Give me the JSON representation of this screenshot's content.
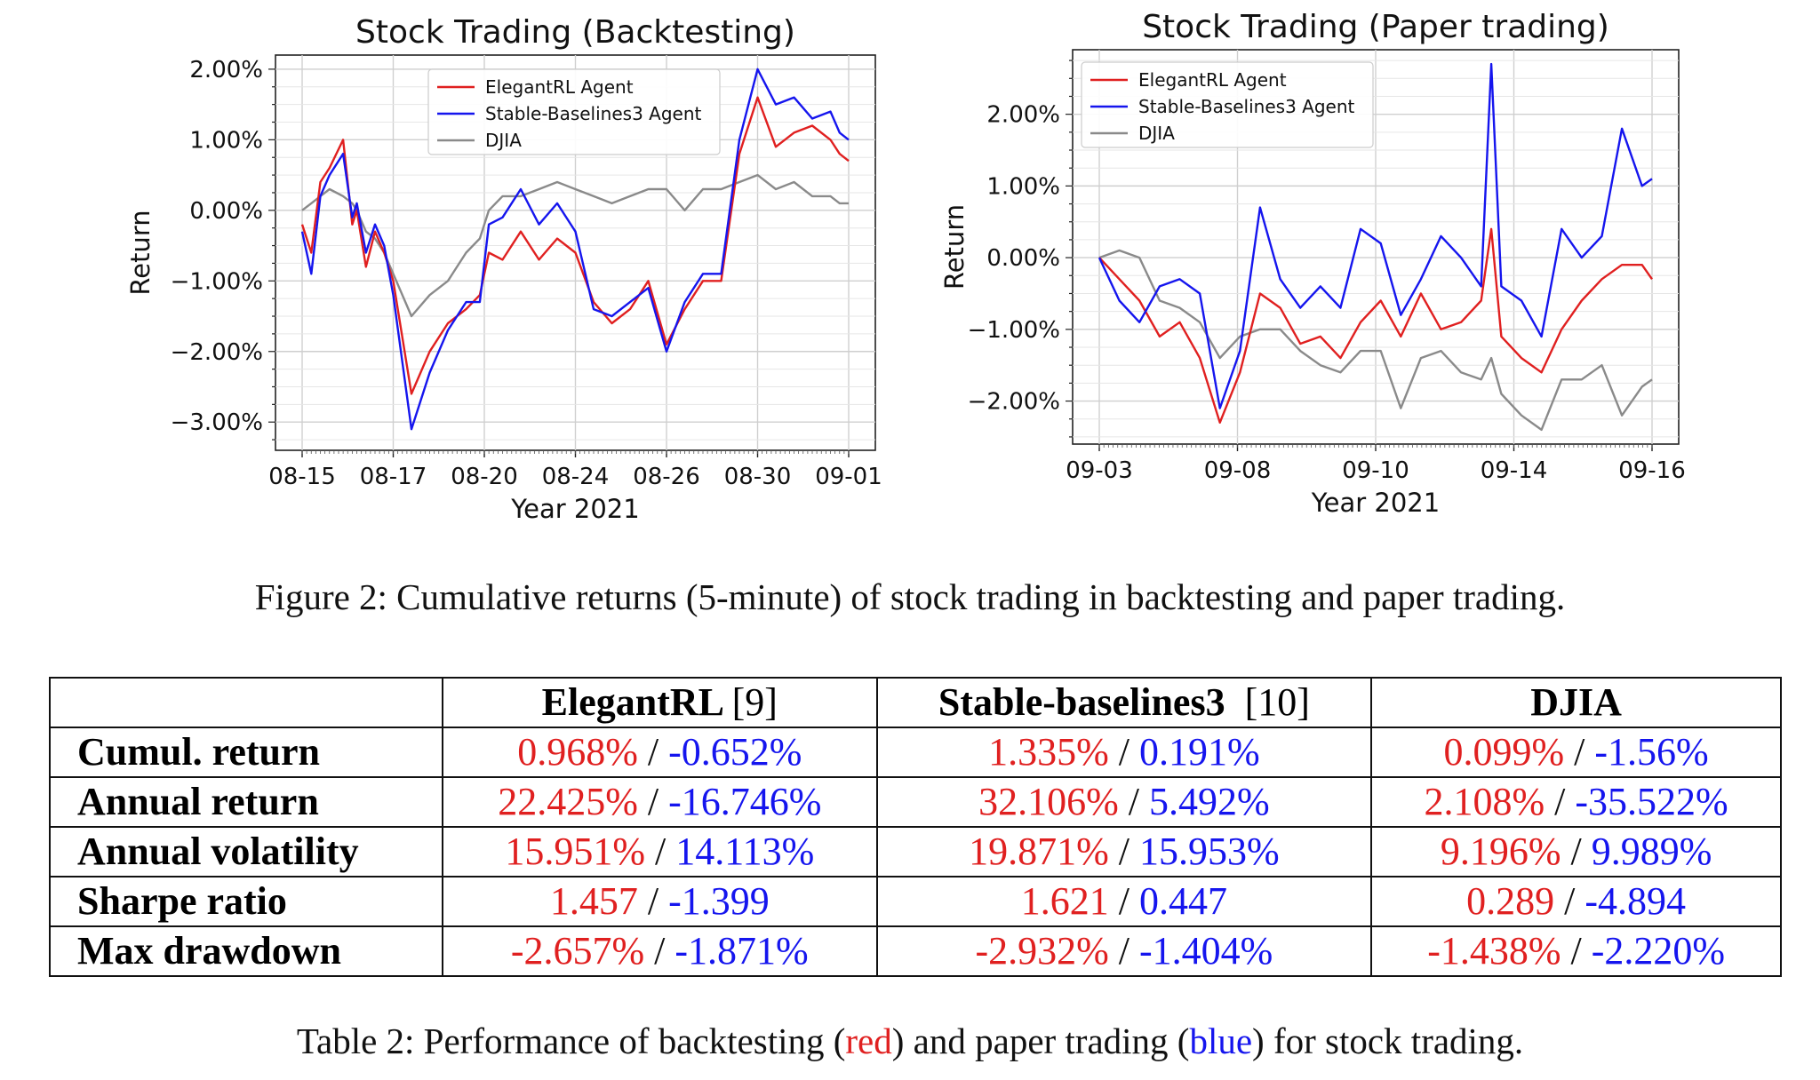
{
  "figure": {
    "caption": "Figure 2: Cumulative returns (5-minute) of stock trading in backtesting and paper trading.",
    "colors": {
      "elegantrl": "#e02020",
      "sb3": "#1515ee",
      "djia": "#8a8a8a"
    },
    "legend": [
      "ElegantRL Agent",
      "Stable-Baselines3 Agent",
      "DJIA"
    ]
  },
  "chart_data": [
    {
      "type": "line",
      "title": "Stock Trading (Backtesting)",
      "xlabel": "Year 2021",
      "ylabel": "Return",
      "x_ticks": [
        "08-15",
        "08-17",
        "08-20",
        "08-24",
        "08-26",
        "08-30",
        "09-01"
      ],
      "ylim": [
        -3.4,
        2.2
      ],
      "y_ticks": [
        -3.0,
        -2.0,
        -1.0,
        0.0,
        1.0,
        2.0
      ],
      "y_tick_labels": [
        "−3.00%",
        "−2.00%",
        "−1.00%",
        "0.00%",
        "1.00%",
        "2.00%"
      ],
      "grid": true,
      "legend_position": "top-center",
      "x": [
        0,
        0.1,
        0.2,
        0.3,
        0.45,
        0.55,
        0.6,
        0.7,
        0.8,
        0.9,
        1.0,
        1.2,
        1.4,
        1.6,
        1.8,
        1.95,
        2.05,
        2.2,
        2.4,
        2.6,
        2.8,
        3.0,
        3.2,
        3.4,
        3.6,
        3.8,
        4.0,
        4.2,
        4.4,
        4.6,
        4.8,
        5.0,
        5.2,
        5.4,
        5.6,
        5.8,
        5.9,
        6.0
      ],
      "series": [
        {
          "name": "ElegantRL Agent",
          "values": [
            -0.2,
            -0.6,
            0.4,
            0.6,
            1.0,
            -0.2,
            0.0,
            -0.8,
            -0.3,
            -0.6,
            -1.0,
            -2.6,
            -2.0,
            -1.6,
            -1.4,
            -1.2,
            -0.6,
            -0.7,
            -0.3,
            -0.7,
            -0.4,
            -0.6,
            -1.3,
            -1.6,
            -1.4,
            -1.0,
            -1.9,
            -1.4,
            -1.0,
            -1.0,
            0.8,
            1.6,
            0.9,
            1.1,
            1.2,
            1.0,
            0.8,
            0.7
          ]
        },
        {
          "name": "Stable-Baselines3 Agent",
          "values": [
            -0.3,
            -0.9,
            0.2,
            0.5,
            0.8,
            -0.1,
            0.1,
            -0.6,
            -0.2,
            -0.5,
            -1.2,
            -3.1,
            -2.3,
            -1.7,
            -1.3,
            -1.3,
            -0.2,
            -0.1,
            0.3,
            -0.2,
            0.1,
            -0.3,
            -1.4,
            -1.5,
            -1.3,
            -1.1,
            -2.0,
            -1.3,
            -0.9,
            -0.9,
            1.0,
            2.0,
            1.5,
            1.6,
            1.3,
            1.4,
            1.1,
            1.0
          ]
        },
        {
          "name": "DJIA",
          "values": [
            0.0,
            0.1,
            0.2,
            0.3,
            0.2,
            0.1,
            0.0,
            -0.3,
            -0.4,
            -0.6,
            -0.9,
            -1.5,
            -1.2,
            -1.0,
            -0.6,
            -0.4,
            0.0,
            0.2,
            0.2,
            0.3,
            0.4,
            0.3,
            0.2,
            0.1,
            0.2,
            0.3,
            0.3,
            0.0,
            0.3,
            0.3,
            0.4,
            0.5,
            0.3,
            0.4,
            0.2,
            0.2,
            0.1,
            0.1
          ]
        }
      ]
    },
    {
      "type": "line",
      "title": "Stock Trading (Paper trading)",
      "xlabel": "Year 2021",
      "ylabel": "Return",
      "x_ticks": [
        "09-03",
        "09-08",
        "09-10",
        "09-14",
        "09-16"
      ],
      "ylim": [
        -2.6,
        2.9
      ],
      "y_ticks": [
        -2.0,
        -1.0,
        0.0,
        1.0,
        2.0
      ],
      "y_tick_labels": [
        "−2.00%",
        "−1.00%",
        "0.00%",
        "1.00%",
        "2.00%"
      ],
      "grid": true,
      "legend_position": "top-left",
      "x": [
        0,
        0.2,
        0.4,
        0.6,
        0.8,
        1.0,
        1.2,
        1.4,
        1.6,
        1.8,
        2.0,
        2.2,
        2.4,
        2.6,
        2.8,
        3.0,
        3.2,
        3.4,
        3.6,
        3.8,
        3.9,
        4.0,
        4.2,
        4.4,
        4.6,
        4.8,
        5.0,
        5.2,
        5.4,
        5.5
      ],
      "series": [
        {
          "name": "ElegantRL Agent",
          "values": [
            0.0,
            -0.3,
            -0.6,
            -1.1,
            -0.9,
            -1.4,
            -2.3,
            -1.6,
            -0.5,
            -0.7,
            -1.2,
            -1.1,
            -1.4,
            -0.9,
            -0.6,
            -1.1,
            -0.5,
            -1.0,
            -0.9,
            -0.6,
            0.4,
            -1.1,
            -1.4,
            -1.6,
            -1.0,
            -0.6,
            -0.3,
            -0.1,
            -0.1,
            -0.3
          ]
        },
        {
          "name": "Stable-Baselines3 Agent",
          "values": [
            0.0,
            -0.6,
            -0.9,
            -0.4,
            -0.3,
            -0.5,
            -2.1,
            -1.3,
            0.7,
            -0.3,
            -0.7,
            -0.4,
            -0.7,
            0.4,
            0.2,
            -0.8,
            -0.3,
            0.3,
            0.0,
            -0.4,
            2.7,
            -0.4,
            -0.6,
            -1.1,
            0.4,
            0.0,
            0.3,
            1.8,
            1.0,
            1.1
          ]
        },
        {
          "name": "DJIA",
          "values": [
            0.0,
            0.1,
            0.0,
            -0.6,
            -0.7,
            -0.9,
            -1.4,
            -1.1,
            -1.0,
            -1.0,
            -1.3,
            -1.5,
            -1.6,
            -1.3,
            -1.3,
            -2.1,
            -1.4,
            -1.3,
            -1.6,
            -1.7,
            -1.4,
            -1.9,
            -2.2,
            -2.4,
            -1.7,
            -1.7,
            -1.5,
            -2.2,
            -1.8,
            -1.7
          ]
        }
      ]
    }
  ],
  "table": {
    "headers": {
      "blank": "",
      "h1_bold": "ElegantRL",
      "h1_ref": "[9]",
      "h2_bold": "Stable-baselines3",
      "h2_ref": "[10]",
      "h3_bold": "DJIA"
    },
    "separator": " / ",
    "rows": [
      {
        "label": "Cumul. return",
        "v": [
          [
            "0.968%",
            "-0.652%"
          ],
          [
            "1.335%",
            "0.191%"
          ],
          [
            "0.099%",
            "-1.56%"
          ]
        ]
      },
      {
        "label": "Annual return",
        "v": [
          [
            "22.425%",
            "-16.746%"
          ],
          [
            "32.106%",
            "5.492%"
          ],
          [
            "2.108%",
            "-35.522%"
          ]
        ]
      },
      {
        "label": "Annual volatility",
        "v": [
          [
            "15.951%",
            "14.113%"
          ],
          [
            "19.871%",
            "15.953%"
          ],
          [
            "9.196%",
            "9.989%"
          ]
        ]
      },
      {
        "label": "Sharpe ratio",
        "v": [
          [
            "1.457",
            "-1.399"
          ],
          [
            "1.621",
            "0.447"
          ],
          [
            "0.289",
            "-4.894"
          ]
        ]
      },
      {
        "label": "Max drawdown",
        "v": [
          [
            "-2.657%",
            "-1.871%"
          ],
          [
            "-2.932%",
            "-1.404%"
          ],
          [
            "-1.438%",
            "-2.220%"
          ]
        ]
      }
    ],
    "caption": {
      "pre": "Table 2: Performance of backtesting (",
      "red_word": "red",
      "mid": ") and paper trading (",
      "blue_word": "blue",
      "post": ") for stock trading."
    }
  }
}
